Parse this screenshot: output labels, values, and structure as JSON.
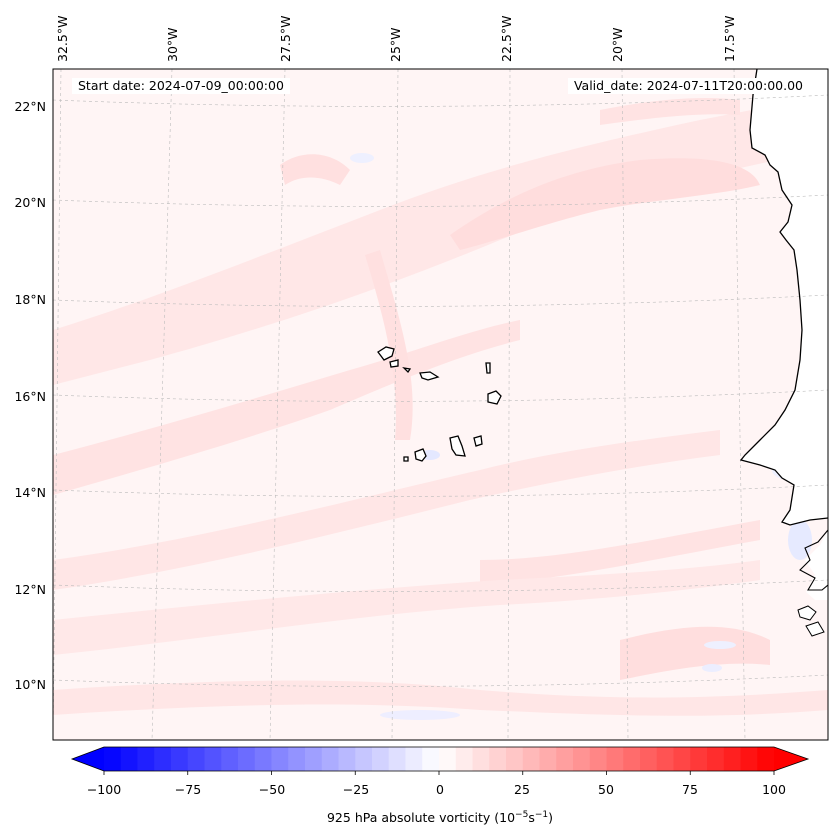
{
  "header": {
    "start_date": "Start date: 2024-07-09_00:00:00",
    "valid_date": "Valid_date: 2024-07-11T20:00:00.00"
  },
  "map": {
    "lon_labels": [
      "32.5°W",
      "30°W",
      "27.5°W",
      "25°W",
      "22.5°W",
      "20°W",
      "17.5°W"
    ],
    "lat_labels": [
      "22°N",
      "20°N",
      "18°N",
      "16°N",
      "14°N",
      "12°N",
      "10°N"
    ],
    "land_color": "#ffffff",
    "coastline_color": "#000000",
    "gridline_style": "dashed-light-grey"
  },
  "colorbar": {
    "ticks": [
      "−100",
      "−75",
      "−50",
      "−25",
      "0",
      "25",
      "50",
      "75",
      "100"
    ],
    "label": "925 hPa absolute vorticity (10",
    "label_exp1": "−5",
    "label_mid": "s",
    "label_exp2": "−1",
    "label_end": ")",
    "cmap": "bwr",
    "extend": "both",
    "vmin": -100,
    "vmax": 100
  }
}
